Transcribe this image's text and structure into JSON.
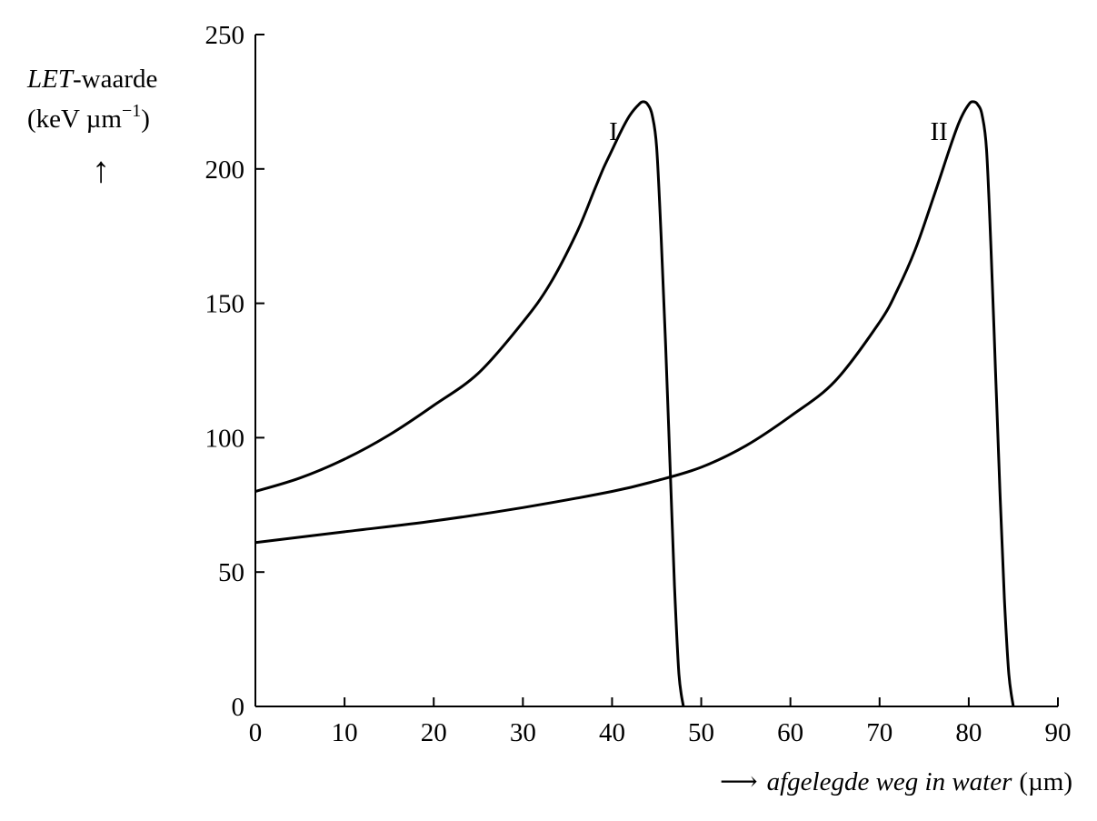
{
  "chart_data": {
    "type": "line",
    "ylabel_italic": "LET",
    "ylabel_rest": "-waarde",
    "yunit_prefix": "(keV µm",
    "yunit_exp": "−1",
    "yunit_suffix": ")",
    "ylabel_arrow": "↑",
    "xlabel_arrow": "⟶",
    "xlabel_italic": "afgelegde weg in water",
    "xlabel_unit": "(µm)",
    "xlim": [
      0,
      90
    ],
    "ylim": [
      0,
      250
    ],
    "xticks": [
      "0",
      "10",
      "20",
      "30",
      "40",
      "50",
      "60",
      "70",
      "80",
      "90"
    ],
    "yticks": [
      "0",
      "50",
      "100",
      "150",
      "200",
      "250"
    ],
    "grid": false,
    "series": [
      {
        "name": "I",
        "x": [
          0,
          5,
          10,
          15,
          20,
          25,
          30,
          33,
          36,
          38,
          39,
          40,
          41,
          42,
          43,
          43.5,
          44,
          44.5,
          45,
          45.5,
          46,
          46.5,
          47,
          47.5,
          48
        ],
        "y": [
          80,
          85,
          92,
          101,
          112,
          124,
          143,
          157,
          176,
          192,
          200,
          207,
          214,
          220,
          224,
          225,
          224,
          220,
          208,
          175,
          135,
          90,
          45,
          12,
          0
        ]
      },
      {
        "name": "II",
        "x": [
          0,
          10,
          20,
          30,
          40,
          45,
          50,
          55,
          60,
          65,
          70,
          72,
          74,
          76,
          78,
          79,
          80,
          80.5,
          81,
          81.5,
          82,
          82.5,
          83,
          83.5,
          84,
          84.5,
          85
        ],
        "y": [
          61,
          65,
          69,
          74,
          80,
          84,
          89,
          97,
          108,
          121,
          143,
          155,
          170,
          189,
          209,
          218,
          224,
          225,
          224,
          220,
          207,
          170,
          125,
          80,
          40,
          12,
          0
        ]
      }
    ]
  }
}
